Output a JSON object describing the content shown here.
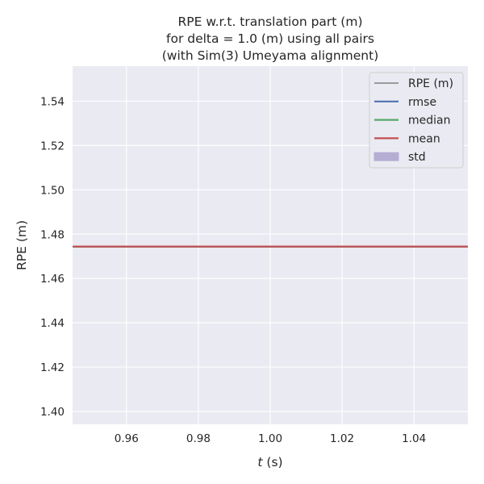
{
  "chart_data": {
    "type": "line",
    "title": [
      "RPE w.r.t. translation part (m)",
      "for delta = 1.0 (m) using all pairs",
      "(with Sim(3) Umeyama alignment)"
    ],
    "xlabel_italic": "t",
    "xlabel_rest": " (s)",
    "ylabel": "RPE (m)",
    "xlim": [
      0.945,
      1.055
    ],
    "ylim": [
      1.3942,
      1.5558
    ],
    "x_ticks": [
      0.96,
      0.98,
      1.0,
      1.02,
      1.04
    ],
    "x_tick_labels": [
      "0.96",
      "0.98",
      "1.00",
      "1.02",
      "1.04"
    ],
    "y_ticks": [
      1.4,
      1.42,
      1.44,
      1.46,
      1.48,
      1.5,
      1.52,
      1.54
    ],
    "y_tick_labels": [
      "1.40",
      "1.42",
      "1.44",
      "1.46",
      "1.48",
      "1.50",
      "1.52",
      "1.54"
    ],
    "grid": true,
    "background": "#eaeaf2",
    "legend_position": "top-right",
    "series": [
      {
        "name": "RPE (m)",
        "kind": "line",
        "color": "#808080",
        "x": [
          1.0
        ],
        "y": [
          1.4744
        ]
      },
      {
        "name": "rmse",
        "kind": "hline",
        "color": "#4c72b0",
        "value": 1.4744
      },
      {
        "name": "median",
        "kind": "hline",
        "color": "#55a868",
        "value": 1.4744
      },
      {
        "name": "mean",
        "kind": "hline",
        "color": "#c44e52",
        "value": 1.4744
      },
      {
        "name": "std",
        "kind": "band",
        "color": "#8172b3",
        "low": 1.4744,
        "high": 1.4744
      }
    ]
  }
}
